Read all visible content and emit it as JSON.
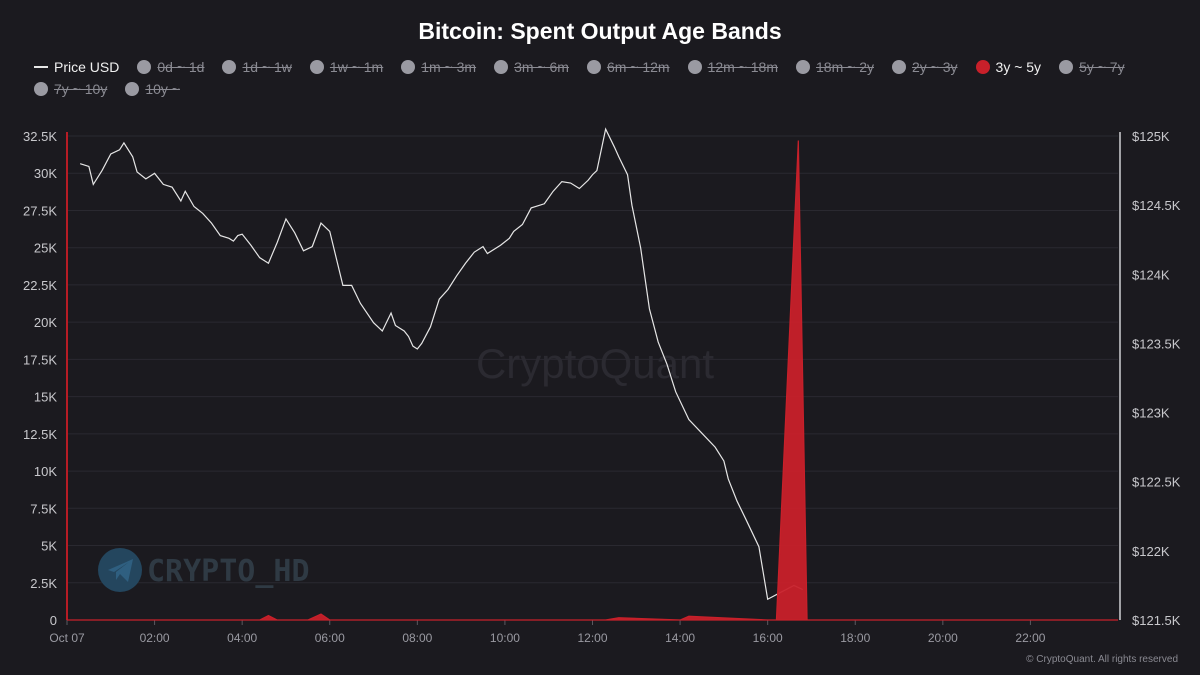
{
  "chart_data": {
    "type": "area",
    "title": "Bitcoin: Spent Output Age Bands",
    "legend": [
      {
        "name": "Price USD",
        "active": true,
        "kind": "line"
      },
      {
        "name": "0d ~ 1d",
        "active": false
      },
      {
        "name": "1d ~ 1w",
        "active": false
      },
      {
        "name": "1w ~ 1m",
        "active": false
      },
      {
        "name": "1m ~ 3m",
        "active": false
      },
      {
        "name": "3m ~ 6m",
        "active": false
      },
      {
        "name": "6m ~ 12m",
        "active": false
      },
      {
        "name": "12m ~ 18m",
        "active": false
      },
      {
        "name": "18m ~ 2y",
        "active": false
      },
      {
        "name": "2y ~ 3y",
        "active": false
      },
      {
        "name": "3y ~ 5y",
        "active": true,
        "color": "#c8202a"
      },
      {
        "name": "5y ~ 7y",
        "active": false
      },
      {
        "name": "7y ~ 10y",
        "active": false
      },
      {
        "name": "10y ~",
        "active": false
      }
    ],
    "x_axis": {
      "unit": "hours",
      "range": [
        0,
        24
      ],
      "ticks": [
        {
          "value": 0,
          "label": "Oct 07"
        },
        {
          "value": 2,
          "label": "02:00"
        },
        {
          "value": 4,
          "label": "04:00"
        },
        {
          "value": 6,
          "label": "06:00"
        },
        {
          "value": 8,
          "label": "08:00"
        },
        {
          "value": 10,
          "label": "10:00"
        },
        {
          "value": 12,
          "label": "12:00"
        },
        {
          "value": 14,
          "label": "14:00"
        },
        {
          "value": 16,
          "label": "16:00"
        },
        {
          "value": 18,
          "label": "18:00"
        },
        {
          "value": 20,
          "label": "20:00"
        },
        {
          "value": 22,
          "label": "22:00"
        }
      ]
    },
    "y_left": {
      "range": [
        0,
        32500
      ],
      "ticks": [
        {
          "value": 0,
          "label": "0"
        },
        {
          "value": 2500,
          "label": "2.5K"
        },
        {
          "value": 5000,
          "label": "5K"
        },
        {
          "value": 7500,
          "label": "7.5K"
        },
        {
          "value": 10000,
          "label": "10K"
        },
        {
          "value": 12500,
          "label": "12.5K"
        },
        {
          "value": 15000,
          "label": "15K"
        },
        {
          "value": 17500,
          "label": "17.5K"
        },
        {
          "value": 20000,
          "label": "20K"
        },
        {
          "value": 22500,
          "label": "22.5K"
        },
        {
          "value": 25000,
          "label": "25K"
        },
        {
          "value": 27500,
          "label": "27.5K"
        },
        {
          "value": 30000,
          "label": "30K"
        },
        {
          "value": 32500,
          "label": "32.5K"
        }
      ]
    },
    "y_right": {
      "range": [
        121500,
        125000
      ],
      "ticks": [
        {
          "value": 121500,
          "label": "$121.5K"
        },
        {
          "value": 122000,
          "label": "$122K"
        },
        {
          "value": 122500,
          "label": "$122.5K"
        },
        {
          "value": 123000,
          "label": "$123K"
        },
        {
          "value": 123500,
          "label": "$123.5K"
        },
        {
          "value": 124000,
          "label": "$124K"
        },
        {
          "value": 124500,
          "label": "$124.5K"
        },
        {
          "value": 125000,
          "label": "$125K"
        }
      ]
    },
    "series": [
      {
        "name": "Price USD",
        "axis": "right",
        "color": "#e6e6e6",
        "x": [
          0.3,
          0.5,
          0.6,
          0.8,
          1.0,
          1.2,
          1.3,
          1.5,
          1.6,
          1.8,
          2.0,
          2.2,
          2.4,
          2.6,
          2.7,
          2.9,
          3.1,
          3.3,
          3.5,
          3.7,
          3.8,
          3.9,
          4.0,
          4.2,
          4.4,
          4.6,
          4.8,
          5.0,
          5.2,
          5.4,
          5.6,
          5.8,
          6.0,
          6.3,
          6.5,
          6.7,
          7.0,
          7.2,
          7.4,
          7.5,
          7.7,
          7.8,
          7.9,
          8.0,
          8.1,
          8.3,
          8.5,
          8.7,
          8.9,
          9.1,
          9.3,
          9.5,
          9.6,
          9.9,
          10.1,
          10.2,
          10.4,
          10.5,
          10.6,
          10.9,
          11.1,
          11.3,
          11.5,
          11.7,
          11.9,
          12.0,
          12.1,
          12.3,
          12.5,
          12.6,
          12.8,
          12.9,
          13.1,
          13.3,
          13.5,
          13.7,
          13.9,
          14.2,
          14.5,
          14.8,
          15.0,
          15.1,
          15.3,
          15.5,
          15.8,
          16.0,
          16.3,
          16.6,
          16.8
        ],
        "y": [
          124800,
          124780,
          124650,
          124750,
          124870,
          124900,
          124950,
          124850,
          124740,
          124690,
          124730,
          124650,
          124630,
          124530,
          124600,
          124490,
          124440,
          124370,
          124280,
          124260,
          124240,
          124280,
          124290,
          124210,
          124120,
          124080,
          124230,
          124400,
          124300,
          124170,
          124200,
          124370,
          124310,
          123920,
          123920,
          123790,
          123650,
          123590,
          123720,
          123630,
          123590,
          123550,
          123480,
          123460,
          123500,
          123620,
          123820,
          123890,
          123990,
          124080,
          124160,
          124200,
          124150,
          124210,
          124260,
          124310,
          124360,
          124420,
          124480,
          124510,
          124600,
          124670,
          124660,
          124620,
          124680,
          124720,
          124750,
          125050,
          124920,
          124850,
          124720,
          124500,
          124190,
          123750,
          123510,
          123350,
          123150,
          122950,
          122850,
          122750,
          122650,
          122520,
          122360,
          122230,
          122030,
          121650,
          121700,
          121750,
          121720
        ]
      },
      {
        "name": "3y ~ 5y",
        "axis": "left",
        "color": "#c8202a",
        "x": [
          0,
          2,
          4.4,
          4.6,
          4.8,
          5.5,
          5.8,
          6.0,
          8,
          10,
          12.3,
          12.6,
          14.0,
          14.2,
          16.0,
          16.2,
          16.7,
          16.9,
          17.0,
          20,
          22,
          24
        ],
        "y": [
          0,
          0,
          0,
          300,
          0,
          0,
          400,
          0,
          0,
          0,
          0,
          150,
          0,
          250,
          0,
          0,
          32200,
          0,
          0,
          0,
          0,
          0
        ]
      }
    ]
  },
  "watermarks": {
    "center": "CryptoQuant",
    "author": "CRYPTO_HD"
  },
  "copyright": "© CryptoQuant. All rights reserved"
}
